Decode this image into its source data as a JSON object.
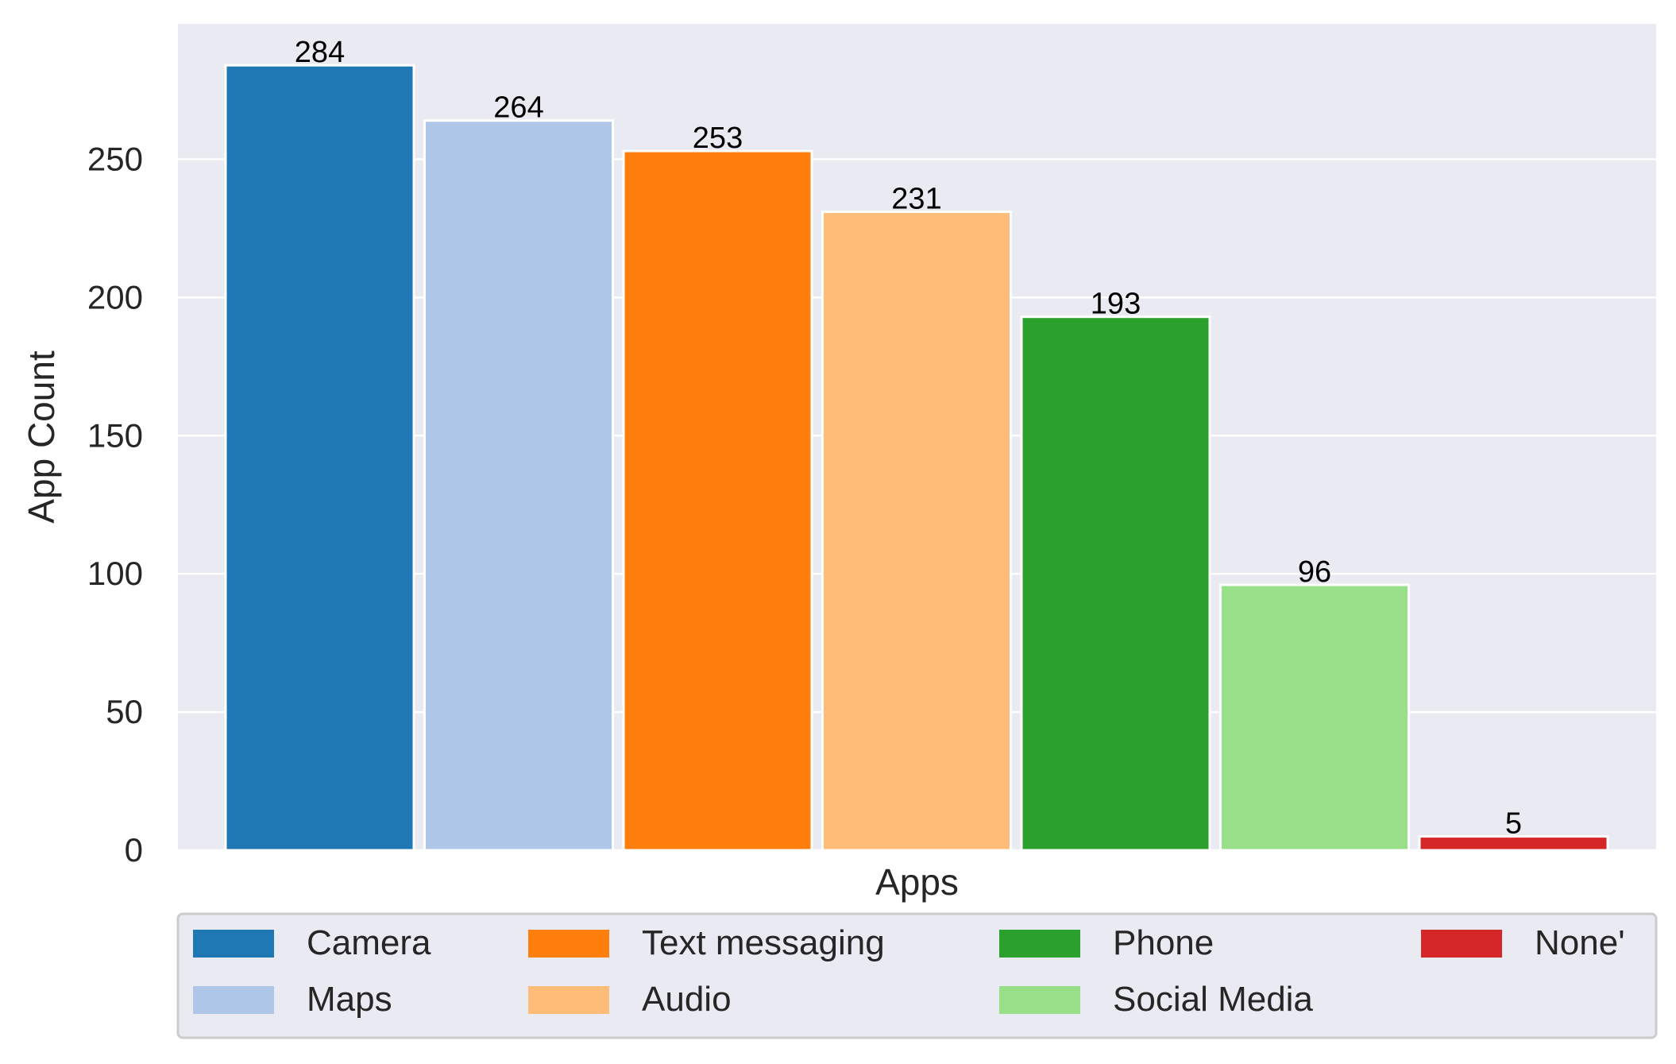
{
  "chart_data": {
    "type": "bar",
    "title": "",
    "xlabel": "Apps",
    "ylabel": "App Count",
    "ylim": [
      0,
      299
    ],
    "yticks": [
      0,
      50,
      100,
      150,
      200,
      250
    ],
    "grid": true,
    "legend_position": "bottom",
    "legend_columns": 4,
    "series": [
      {
        "name": "Camera",
        "value": 284,
        "color": "#1f77b4"
      },
      {
        "name": "Maps",
        "value": 264,
        "color": "#aec7e8"
      },
      {
        "name": "Text messaging",
        "value": 253,
        "color": "#ff7f0e"
      },
      {
        "name": "Audio",
        "value": 231,
        "color": "#ffbb78"
      },
      {
        "name": "Phone",
        "value": 193,
        "color": "#2ca02c"
      },
      {
        "name": "Social Media",
        "value": 96,
        "color": "#98df8a"
      },
      {
        "name": "None'",
        "value": 5,
        "color": "#d62728"
      }
    ]
  },
  "colors": {
    "plot_background": "#eaeaf2",
    "grid": "#ffffff",
    "bar_edge": "#ffffff",
    "text": "#262626",
    "data_label": "#000000"
  }
}
